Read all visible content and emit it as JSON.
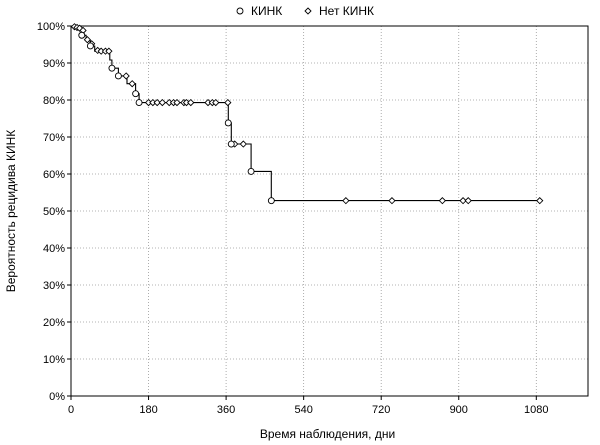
{
  "chart_data": {
    "type": "line",
    "title": "",
    "xlabel": "Время наблюдения, дни",
    "ylabel": "Вероятность рецидива КИНК",
    "xlim": [
      0,
      1200
    ],
    "ylim": [
      0,
      100
    ],
    "x_ticks": [
      0,
      180,
      360,
      540,
      720,
      900,
      1080
    ],
    "y_ticks": [
      0,
      10,
      20,
      30,
      40,
      50,
      60,
      70,
      80,
      90,
      100
    ],
    "y_tick_suffix": "%",
    "grid": true,
    "legend_position": "top",
    "series": [
      {
        "name": "КИНК",
        "marker": "circle",
        "step": [
          [
            0,
            100
          ],
          [
            18,
            100
          ],
          [
            18,
            99.2
          ],
          [
            25,
            99.2
          ],
          [
            25,
            97.5
          ],
          [
            35,
            97.5
          ],
          [
            35,
            96.0
          ],
          [
            45,
            96.0
          ],
          [
            45,
            94.6
          ],
          [
            55,
            94.6
          ],
          [
            55,
            93.2
          ],
          [
            90,
            93.2
          ],
          [
            90,
            90.8
          ],
          [
            95,
            90.8
          ],
          [
            95,
            88.6
          ],
          [
            110,
            88.6
          ],
          [
            110,
            86.5
          ],
          [
            130,
            86.5
          ],
          [
            130,
            84.4
          ],
          [
            150,
            84.4
          ],
          [
            150,
            81.7
          ],
          [
            158,
            81.7
          ],
          [
            158,
            79.3
          ],
          [
            365,
            79.3
          ],
          [
            365,
            73.8
          ],
          [
            372,
            73.8
          ],
          [
            372,
            68.1
          ],
          [
            418,
            68.1
          ],
          [
            418,
            60.7
          ],
          [
            465,
            60.7
          ],
          [
            465,
            52.8
          ],
          [
            1090,
            52.8
          ]
        ],
        "points": [
          [
            25,
            97.5
          ],
          [
            45,
            94.6
          ],
          [
            95,
            88.6
          ],
          [
            110,
            86.5
          ],
          [
            150,
            81.7
          ],
          [
            158,
            79.3
          ],
          [
            365,
            73.8
          ],
          [
            372,
            68.1
          ],
          [
            418,
            60.7
          ],
          [
            465,
            52.8
          ]
        ]
      },
      {
        "name": "Нет КИНК",
        "marker": "diamond",
        "points": [
          [
            8,
            99.8
          ],
          [
            14,
            99.6
          ],
          [
            20,
            99.4
          ],
          [
            28,
            98.8
          ],
          [
            38,
            96.3
          ],
          [
            48,
            95.2
          ],
          [
            62,
            93.4
          ],
          [
            70,
            93.2
          ],
          [
            80,
            93.2
          ],
          [
            88,
            93.2
          ],
          [
            128,
            86.5
          ],
          [
            142,
            84.4
          ],
          [
            180,
            79.3
          ],
          [
            190,
            79.3
          ],
          [
            200,
            79.3
          ],
          [
            212,
            79.3
          ],
          [
            228,
            79.3
          ],
          [
            238,
            79.3
          ],
          [
            246,
            79.3
          ],
          [
            262,
            79.3
          ],
          [
            268,
            79.3
          ],
          [
            278,
            79.3
          ],
          [
            318,
            79.3
          ],
          [
            328,
            79.3
          ],
          [
            336,
            79.3
          ],
          [
            364,
            79.3
          ],
          [
            372,
            68.1
          ],
          [
            380,
            68.1
          ],
          [
            400,
            68.1
          ],
          [
            638,
            52.8
          ],
          [
            745,
            52.8
          ],
          [
            862,
            52.8
          ],
          [
            910,
            52.8
          ],
          [
            922,
            52.8
          ],
          [
            1088,
            52.8
          ]
        ]
      }
    ]
  }
}
